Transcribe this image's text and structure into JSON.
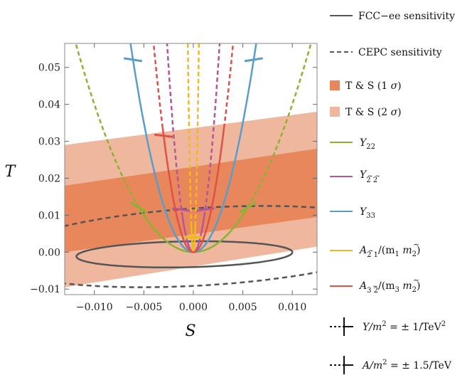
{
  "chart_data": {
    "type": "line",
    "xlabel": "S",
    "ylabel": "T",
    "xlim": [
      -0.013,
      0.0125
    ],
    "ylim": [
      -0.0115,
      0.0565
    ],
    "x_ticks": [
      -0.01,
      -0.005,
      0.0,
      0.005,
      0.01
    ],
    "x_tick_labels": [
      "−0.010",
      "−0.005",
      "0.000",
      "0.005",
      "0.010"
    ],
    "y_ticks": [
      -0.01,
      0.0,
      0.01,
      0.02,
      0.03,
      0.04,
      0.05
    ],
    "y_tick_labels": [
      "−0.01",
      "0.00",
      "0.01",
      "0.02",
      "0.03",
      "0.04",
      "0.05"
    ],
    "bands": [
      {
        "name": "T & S  (2 σ)",
        "color": "#efb79d",
        "lower": [
          [
            -0.013,
            -0.0095
          ],
          [
            0.0125,
            0.0015
          ]
        ],
        "upper": [
          [
            -0.013,
            0.029
          ],
          [
            0.0125,
            0.038
          ]
        ]
      },
      {
        "name": "T & S  (1 σ)",
        "color": "#e8875b",
        "lower": [
          [
            -0.013,
            0.0
          ],
          [
            0.0125,
            0.0095
          ]
        ],
        "upper": [
          [
            -0.013,
            0.018
          ],
          [
            0.0125,
            0.028
          ]
        ]
      }
    ],
    "ellipses": [
      {
        "name": "FCC−ee sensitivity",
        "style": "solid",
        "color": "#555555",
        "center": [
          -0.0009,
          -0.0006
        ],
        "semi_axis_S": 0.0112,
        "semi_axis_T": 0.0035,
        "rotation_deg": 13
      },
      {
        "name": "CEPC sensitivity",
        "style": "dashed",
        "color": "#555555",
        "center": [
          0.001,
          0.0015
        ],
        "semi_axis_S": 0.0228,
        "semi_axis_T": 0.0105,
        "rotation_deg": 24
      }
    ],
    "series": [
      {
        "name": "Y22",
        "color": "#8bb332",
        "curvature": 400,
        "solid_to_abs_S": 0.0055,
        "tick_at_abs_S": 0.0055
      },
      {
        "name": "Y2~2~",
        "color": "#b6559b",
        "curvature": 8000,
        "solid_to_abs_S": 0.0011,
        "tick_at_abs_S": 0.0012
      },
      {
        "name": "Y33",
        "color": "#5b9dc9",
        "curvature": 1400,
        "solid_to_abs_S": 0.0064,
        "tick_at_abs_S": 0.0061
      },
      {
        "name": "A2~1/(m1 m~2)",
        "color": "#f2b821",
        "curvature": 180000,
        "solid_to_abs_S": 0.0002,
        "tick_at_abs_S": 0.00015
      },
      {
        "name": "A32~/(m3 m~2)",
        "color": "#de5049",
        "curvature": 3500,
        "solid_to_abs_S": 0.0031,
        "tick_at_abs_S": 0.003
      }
    ],
    "legend_placement": "right",
    "grid": false
  },
  "legend": {
    "fcc": "FCC−ee sensitivity",
    "cepc": "CEPC sensitivity",
    "ts1_main": "T & S  (1 ",
    "ts2_main": "T & S  (2 ",
    "sigma": "σ",
    "close_paren": ")",
    "y22_base": "Y",
    "y22_sub": "22",
    "ytt_base": "Y",
    "ytt_sub": "2 2",
    "ytt_tilde": "~  ~",
    "y33_base": "Y",
    "y33_sub": "33",
    "a21_base": "A",
    "a21_sub": "2 1",
    "a21_tilde": "~",
    "a21_rest": "/(m",
    "a21_sub2": "1",
    "a21_m2": " m",
    "a21_m2tilde": "~",
    "a21_sub3": "2",
    "a21_end": ")",
    "a32_base": "A",
    "a32_sub": "3 2",
    "a32_tilde": "~",
    "a32_rest": "/(m",
    "a32_sub2": "3",
    "a32_m2": " m",
    "a32_m2tilde": "~",
    "a32_sub3": "2",
    "a32_end": ")",
    "ym_Y": "Y",
    "ym_m": "/m",
    "ym_pow": "2",
    "ym_rest": " = ± 1/TeV",
    "ym_pow2": "2",
    "am_A": "A",
    "am_m": "/m",
    "am_pow": "2",
    "am_rest": " = ± 1.5/TeV"
  }
}
